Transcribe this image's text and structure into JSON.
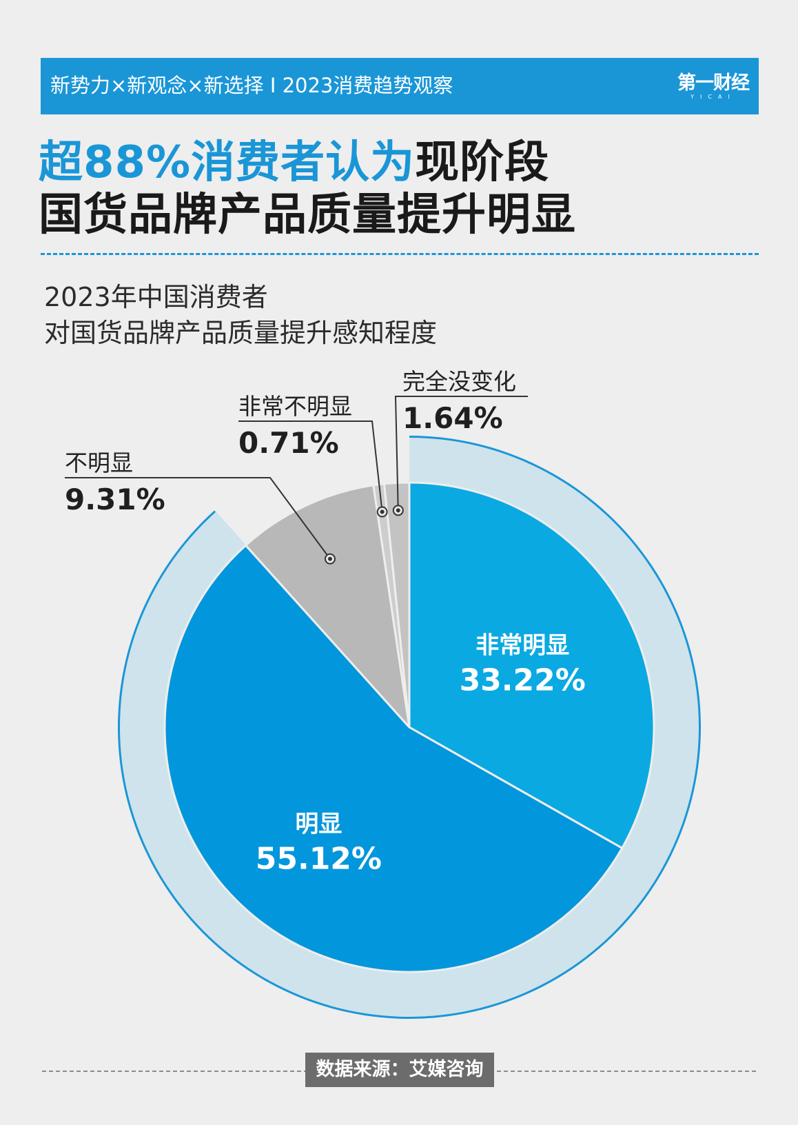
{
  "header": {
    "banner_text": "新势力×新观念×新选择 I 2023消费趋势观察",
    "brand_main": "第一财经",
    "brand_sub": "YICAI"
  },
  "headline": {
    "highlight": "超88%消费者认为",
    "rest_line1": "现阶段",
    "line2": "国货品牌产品质量提升明显"
  },
  "chart_data": {
    "type": "pie",
    "title_line1": "2023年中国消费者",
    "title_line2": "对国货品牌产品质量提升感知程度",
    "slices": [
      {
        "label": "非常明显",
        "value": 33.22,
        "display": "33.22%",
        "color": "#0aa9e2"
      },
      {
        "label": "明显",
        "value": 55.12,
        "display": "55.12%",
        "color": "#0296dc"
      },
      {
        "label": "不明显",
        "value": 9.31,
        "display": "9.31%",
        "color": "#b8b8b8"
      },
      {
        "label": "非常不明显",
        "value": 0.71,
        "display": "0.71%",
        "color": "#cdcdcd"
      },
      {
        "label": "完全没变化",
        "value": 1.64,
        "display": "1.64%",
        "color": "#c3c3c3"
      }
    ],
    "ring_color": "#cfe3ec",
    "outline_color": "#1a96d7"
  },
  "footer": {
    "source": "数据来源：艾媒咨询"
  }
}
